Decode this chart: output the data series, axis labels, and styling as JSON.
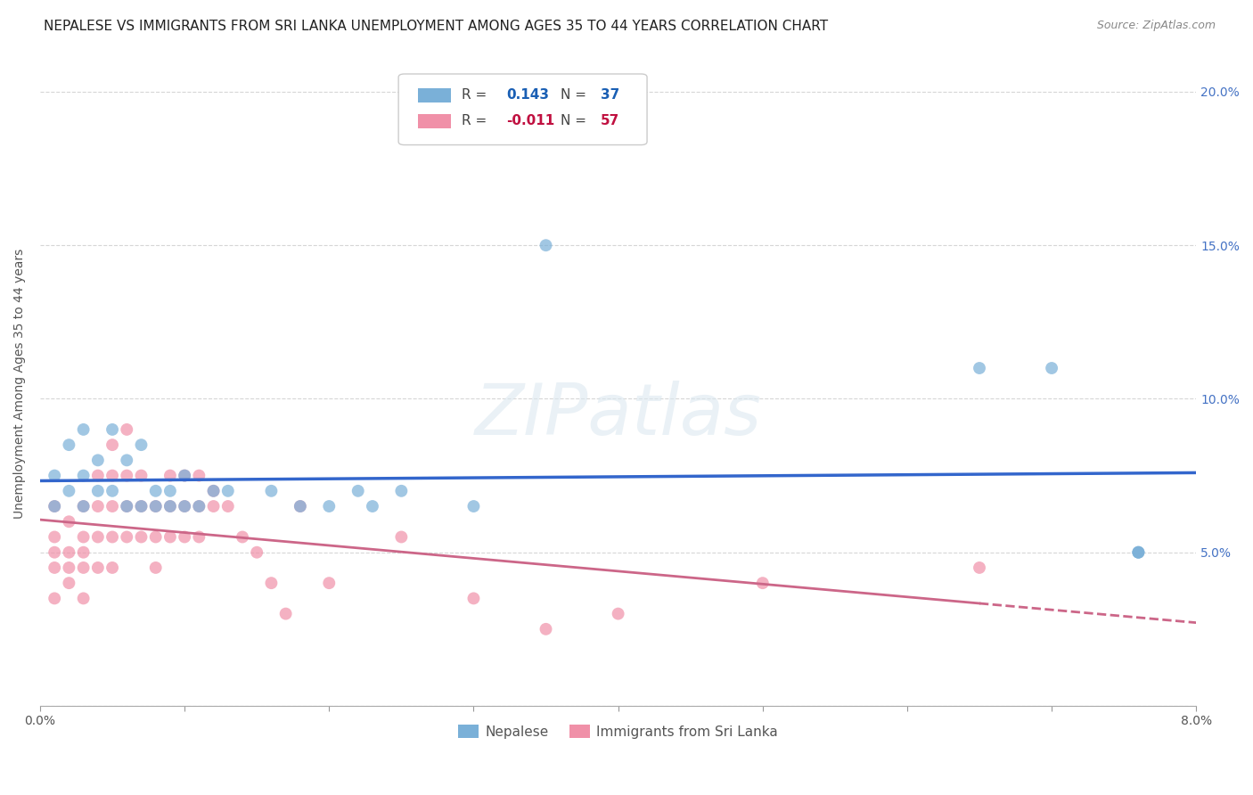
{
  "title": "NEPALESE VS IMMIGRANTS FROM SRI LANKA UNEMPLOYMENT AMONG AGES 35 TO 44 YEARS CORRELATION CHART",
  "source": "Source: ZipAtlas.com",
  "ylabel": "Unemployment Among Ages 35 to 44 years",
  "xlim": [
    0.0,
    0.08
  ],
  "ylim": [
    0.0,
    0.21
  ],
  "y_ticks": [
    0.0,
    0.05,
    0.1,
    0.15,
    0.2
  ],
  "y_tick_labels_right": [
    "",
    "5.0%",
    "10.0%",
    "15.0%",
    "20.0%"
  ],
  "legend_entries": [
    {
      "label": "Nepalese",
      "color": "#a8c8e8",
      "R": "0.143",
      "N": "37"
    },
    {
      "label": "Immigrants from Sri Lanka",
      "color": "#f4a0b8",
      "R": "-0.011",
      "N": "57"
    }
  ],
  "nepalese_x": [
    0.001,
    0.001,
    0.002,
    0.002,
    0.003,
    0.003,
    0.003,
    0.004,
    0.004,
    0.005,
    0.005,
    0.006,
    0.006,
    0.007,
    0.007,
    0.008,
    0.008,
    0.009,
    0.009,
    0.01,
    0.01,
    0.011,
    0.012,
    0.013,
    0.016,
    0.018,
    0.02,
    0.022,
    0.023,
    0.025,
    0.03,
    0.035,
    0.065,
    0.07,
    0.076,
    0.076,
    0.076
  ],
  "nepalese_y": [
    0.065,
    0.075,
    0.085,
    0.07,
    0.065,
    0.075,
    0.09,
    0.07,
    0.08,
    0.07,
    0.09,
    0.065,
    0.08,
    0.065,
    0.085,
    0.07,
    0.065,
    0.065,
    0.07,
    0.065,
    0.075,
    0.065,
    0.07,
    0.07,
    0.07,
    0.065,
    0.065,
    0.07,
    0.065,
    0.07,
    0.065,
    0.15,
    0.11,
    0.11,
    0.05,
    0.05,
    0.05
  ],
  "srilanka_x": [
    0.001,
    0.001,
    0.001,
    0.001,
    0.001,
    0.002,
    0.002,
    0.002,
    0.002,
    0.003,
    0.003,
    0.003,
    0.003,
    0.003,
    0.004,
    0.004,
    0.004,
    0.004,
    0.005,
    0.005,
    0.005,
    0.005,
    0.005,
    0.006,
    0.006,
    0.006,
    0.006,
    0.007,
    0.007,
    0.007,
    0.008,
    0.008,
    0.008,
    0.009,
    0.009,
    0.009,
    0.01,
    0.01,
    0.01,
    0.011,
    0.011,
    0.011,
    0.012,
    0.012,
    0.013,
    0.014,
    0.015,
    0.016,
    0.017,
    0.018,
    0.02,
    0.025,
    0.03,
    0.035,
    0.04,
    0.05,
    0.065
  ],
  "srilanka_y": [
    0.065,
    0.055,
    0.05,
    0.045,
    0.035,
    0.06,
    0.05,
    0.045,
    0.04,
    0.065,
    0.055,
    0.05,
    0.045,
    0.035,
    0.075,
    0.065,
    0.055,
    0.045,
    0.085,
    0.075,
    0.065,
    0.055,
    0.045,
    0.09,
    0.075,
    0.065,
    0.055,
    0.075,
    0.065,
    0.055,
    0.065,
    0.055,
    0.045,
    0.075,
    0.065,
    0.055,
    0.075,
    0.065,
    0.055,
    0.075,
    0.065,
    0.055,
    0.07,
    0.065,
    0.065,
    0.055,
    0.05,
    0.04,
    0.03,
    0.065,
    0.04,
    0.055,
    0.035,
    0.025,
    0.03,
    0.04,
    0.045
  ],
  "nepalese_color": "#7ab0d8",
  "srilanka_color": "#f090a8",
  "nepalese_line_color": "#3366cc",
  "srilanka_line_color": "#cc6688",
  "background_color": "#ffffff",
  "grid_color": "#cccccc",
  "title_fontsize": 11,
  "axis_label_fontsize": 10,
  "tick_fontsize": 10,
  "right_tick_color": "#4472c4",
  "watermark_color": "#dce8f0",
  "watermark_alpha": 0.6
}
